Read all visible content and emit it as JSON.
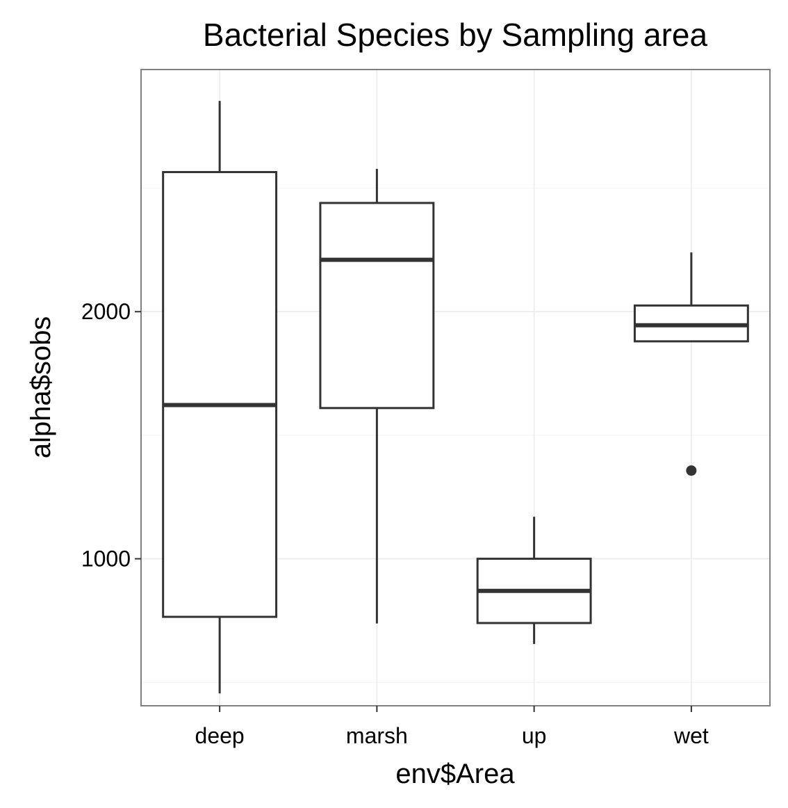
{
  "chart_data": {
    "type": "box",
    "title": "Bacterial Species by Sampling area",
    "xlabel": "env$Area",
    "ylabel": "alpha$sobs",
    "categories": [
      "deep",
      "marsh",
      "up",
      "wet"
    ],
    "boxes": [
      {
        "category": "deep",
        "whisker_low": 455,
        "q1": 765,
        "median": 1622,
        "q3": 2565,
        "whisker_high": 2853,
        "outliers": []
      },
      {
        "category": "marsh",
        "whisker_low": 738,
        "q1": 1610,
        "median": 2210,
        "q3": 2440,
        "whisker_high": 2578,
        "outliers": []
      },
      {
        "category": "up",
        "whisker_low": 655,
        "q1": 740,
        "median": 870,
        "q3": 1000,
        "whisker_high": 1170,
        "outliers": []
      },
      {
        "category": "wet",
        "whisker_low": 1880,
        "q1": 1880,
        "median": 1945,
        "q3": 2025,
        "whisker_high": 2240,
        "outliers": [
          1357
        ]
      }
    ],
    "y_ticks": [
      1000,
      2000
    ],
    "y_tick_labels": [
      "1000",
      "2000"
    ],
    "ylim": [
      405,
      2980
    ],
    "grid": true
  }
}
